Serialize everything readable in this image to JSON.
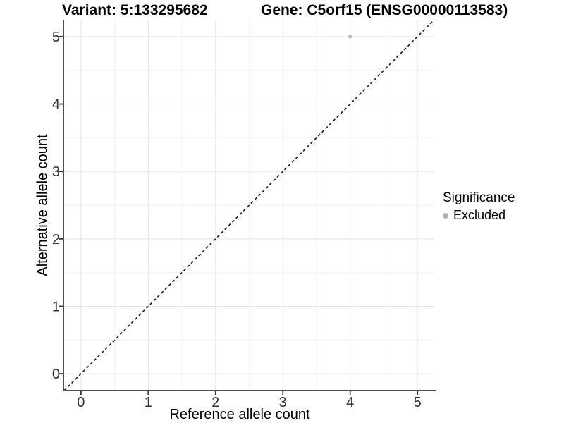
{
  "titles": {
    "left": "Variant: 5:133295682",
    "right": "Gene: C5orf15 (ENSG00000113583)"
  },
  "chart_data": {
    "type": "scatter",
    "xlabel": "Reference allele count",
    "ylabel": "Alternative allele count",
    "xlim": [
      -0.25,
      5.25
    ],
    "ylim": [
      -0.25,
      5.25
    ],
    "x_ticks": [
      0,
      1,
      2,
      3,
      4,
      5
    ],
    "y_ticks": [
      0,
      1,
      2,
      3,
      4,
      5
    ],
    "x_minor": [
      0.5,
      1.5,
      2.5,
      3.5,
      4.5
    ],
    "y_minor": [
      0.5,
      1.5,
      2.5,
      3.5,
      4.5
    ],
    "grid": true,
    "points": [
      {
        "x": 4,
        "y": 5,
        "series": "Excluded"
      }
    ],
    "reference_line": {
      "kind": "identity y=x",
      "style": "dashed",
      "color": "#1a1a1a"
    },
    "legend": {
      "position": "right",
      "title": "Significance",
      "items": [
        {
          "label": "Excluded",
          "color": "#b0b0b0"
        }
      ]
    },
    "colors": {
      "point": "#b8b8b8",
      "grid_major": "#e4e4e4",
      "grid_minor": "#f2f2f2",
      "axis_line": "#4d4d4d",
      "tick_mark": "#333333",
      "tick_label": "#333333",
      "text": "#000000",
      "background": "#ffffff"
    }
  }
}
